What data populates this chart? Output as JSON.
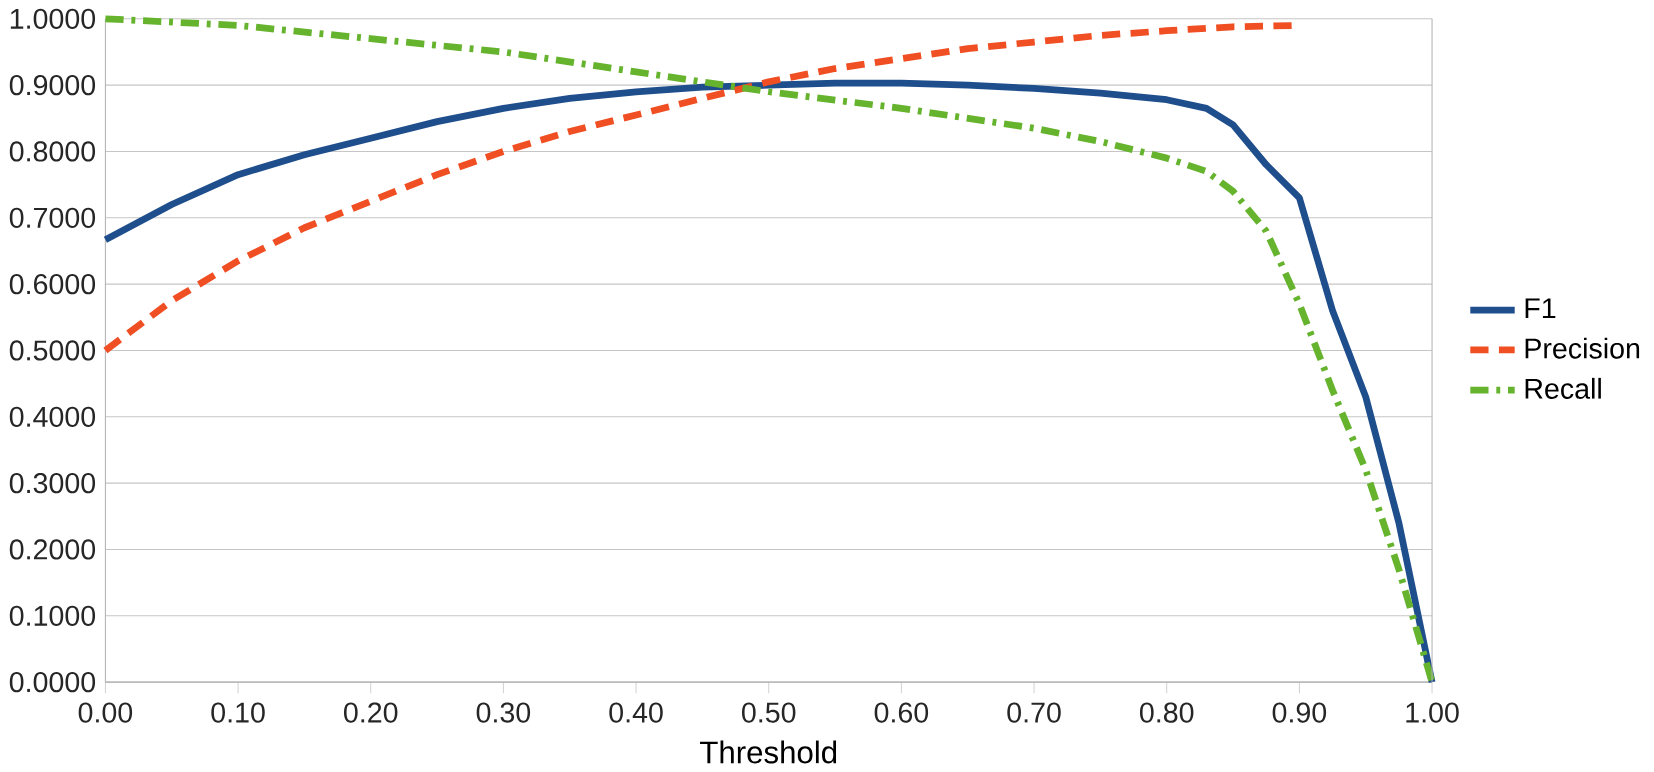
{
  "chart_data": {
    "type": "line",
    "xlabel": "Threshold",
    "xlim": [
      0,
      1
    ],
    "ylim": [
      0,
      1
    ],
    "xticks": [
      {
        "value": 0,
        "label": "0.00"
      },
      {
        "value": 0.1,
        "label": "0.10"
      },
      {
        "value": 0.2,
        "label": "0.20"
      },
      {
        "value": 0.3,
        "label": "0.30"
      },
      {
        "value": 0.4,
        "label": "0.40"
      },
      {
        "value": 0.5,
        "label": "0.50"
      },
      {
        "value": 0.6,
        "label": "0.60"
      },
      {
        "value": 0.7,
        "label": "0.70"
      },
      {
        "value": 0.8,
        "label": "0.80"
      },
      {
        "value": 0.9,
        "label": "0.90"
      },
      {
        "value": 1,
        "label": "1.00"
      }
    ],
    "yticks": [
      {
        "value": 0,
        "label": "0.0000"
      },
      {
        "value": 0.1,
        "label": "0.1000"
      },
      {
        "value": 0.2,
        "label": "0.2000"
      },
      {
        "value": 0.3,
        "label": "0.3000"
      },
      {
        "value": 0.4,
        "label": "0.4000"
      },
      {
        "value": 0.5,
        "label": "0.5000"
      },
      {
        "value": 0.6,
        "label": "0.6000"
      },
      {
        "value": 0.7,
        "label": "0.7000"
      },
      {
        "value": 0.8,
        "label": "0.8000"
      },
      {
        "value": 0.9,
        "label": "0.9000"
      },
      {
        "value": 1,
        "label": "1.0000"
      }
    ],
    "grid": "y",
    "legend": "right",
    "series": [
      {
        "name": "F1",
        "color": "#1f4e8c",
        "line_style": "solid",
        "x": [
          0,
          0.05,
          0.1,
          0.15,
          0.2,
          0.25,
          0.3,
          0.35,
          0.4,
          0.45,
          0.5,
          0.55,
          0.6,
          0.65,
          0.7,
          0.75,
          0.8,
          0.83,
          0.85,
          0.875,
          0.9,
          0.925,
          0.95,
          0.975,
          1
        ],
        "values": [
          0.667,
          0.72,
          0.765,
          0.795,
          0.82,
          0.845,
          0.865,
          0.88,
          0.89,
          0.897,
          0.9,
          0.903,
          0.903,
          0.9,
          0.895,
          0.888,
          0.878,
          0.865,
          0.84,
          0.78,
          0.73,
          0.56,
          0.43,
          0.24,
          0
        ]
      },
      {
        "name": "Precision",
        "color": "#f04e23",
        "line_style": "dashed",
        "x": [
          0,
          0.05,
          0.1,
          0.15,
          0.2,
          0.25,
          0.3,
          0.35,
          0.4,
          0.45,
          0.5,
          0.55,
          0.6,
          0.65,
          0.7,
          0.75,
          0.8,
          0.85,
          0.9
        ],
        "values": [
          0.5,
          0.575,
          0.635,
          0.685,
          0.725,
          0.765,
          0.8,
          0.83,
          0.855,
          0.88,
          0.905,
          0.925,
          0.94,
          0.955,
          0.965,
          0.975,
          0.982,
          0.988,
          0.99
        ]
      },
      {
        "name": "Recall",
        "color": "#66b32e",
        "line_style": "dashdot",
        "x": [
          0,
          0.1,
          0.2,
          0.3,
          0.4,
          0.45,
          0.5,
          0.6,
          0.7,
          0.75,
          0.8,
          0.83,
          0.85,
          0.875,
          0.9,
          0.925,
          0.95,
          0.975,
          1
        ],
        "values": [
          1,
          0.99,
          0.97,
          0.95,
          0.92,
          0.905,
          0.89,
          0.865,
          0.835,
          0.815,
          0.79,
          0.77,
          0.74,
          0.68,
          0.57,
          0.44,
          0.32,
          0.17,
          0
        ]
      }
    ]
  }
}
